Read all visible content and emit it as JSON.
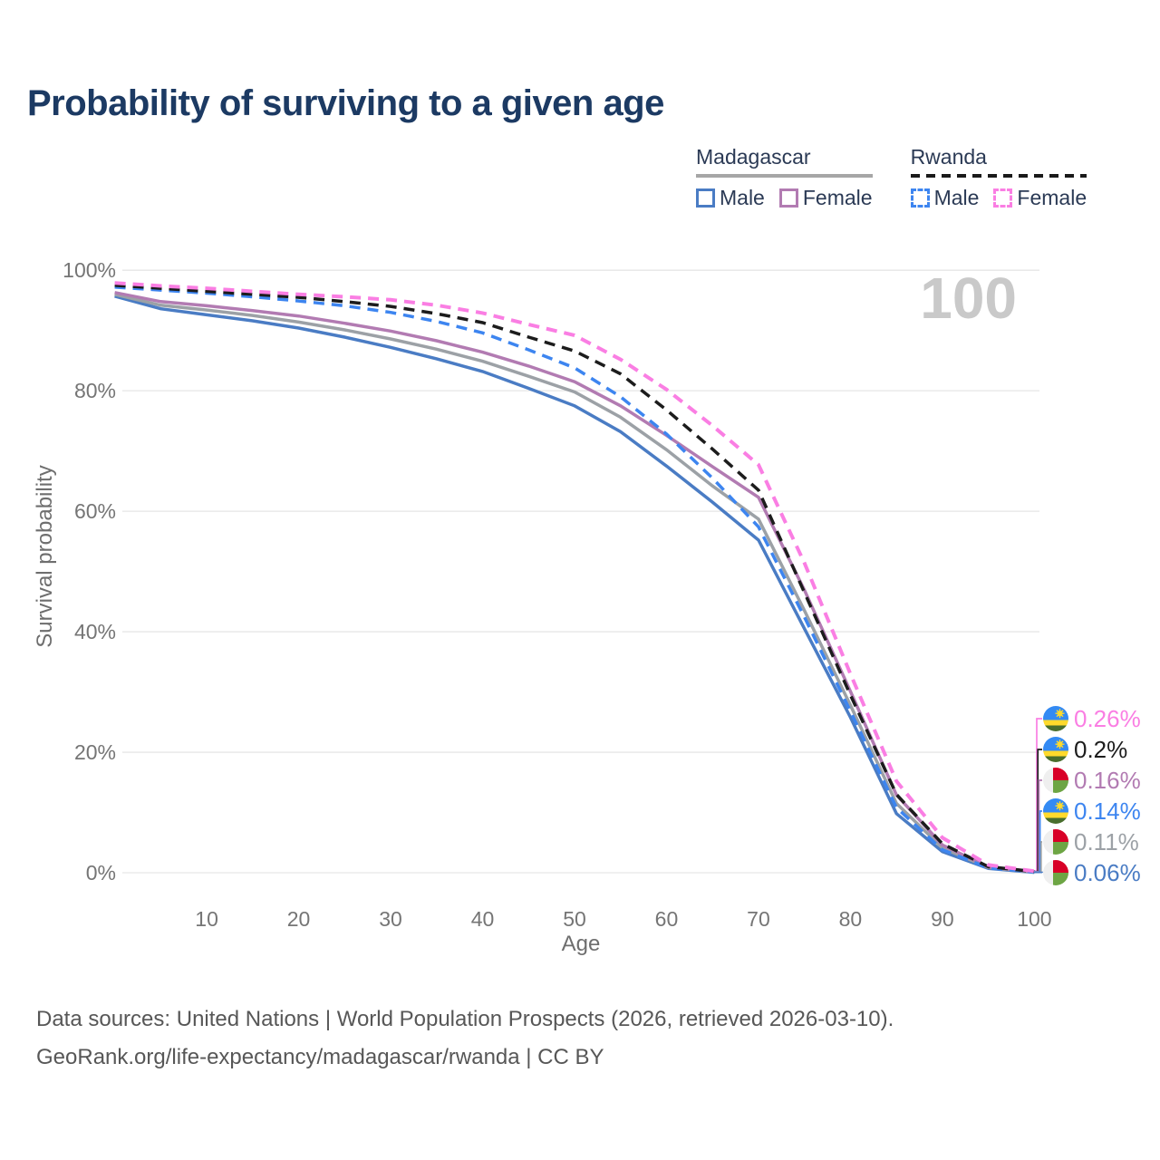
{
  "title": "Probability of surviving to a given age",
  "legend": {
    "groups": [
      {
        "label": "Madagascar",
        "underline_style": "solid",
        "underline_color": "#a6a6a6",
        "items": [
          {
            "label": "Male",
            "color": "#4a7cc4",
            "dashed": false
          },
          {
            "label": "Female",
            "color": "#b27bb2",
            "dashed": false
          }
        ]
      },
      {
        "label": "Rwanda",
        "underline_style": "dashed",
        "underline_color": "#1a1a1a",
        "items": [
          {
            "label": "Male",
            "color": "#3d85f0",
            "dashed": true
          },
          {
            "label": "Female",
            "color": "#fa7ee3",
            "dashed": true
          }
        ]
      }
    ]
  },
  "watermark": "100",
  "chart_data": {
    "type": "line",
    "title": "Probability of surviving to a given age",
    "xlabel": "Age",
    "ylabel": "Survival probability",
    "x_range": [
      0,
      100
    ],
    "y_range": [
      0,
      100
    ],
    "grid": "horizontal",
    "legend_position": "top-right",
    "x": [
      0,
      5,
      10,
      15,
      20,
      25,
      30,
      35,
      40,
      45,
      50,
      55,
      60,
      65,
      70,
      75,
      80,
      85,
      90,
      95,
      100
    ],
    "x_ticks": [
      10,
      20,
      30,
      40,
      50,
      60,
      70,
      80,
      90,
      100
    ],
    "y_ticks": [
      {
        "value": 100,
        "label": "100%"
      },
      {
        "value": 80,
        "label": "80%"
      },
      {
        "value": 60,
        "label": "60%"
      },
      {
        "value": 40,
        "label": "40%"
      },
      {
        "value": 20,
        "label": "20%"
      },
      {
        "value": 0,
        "label": "0%"
      }
    ],
    "series": [
      {
        "name": "Madagascar Male",
        "country": "Madagascar",
        "sex": "male",
        "color": "#4a7cc4",
        "dashed": false,
        "values": [
          95.7,
          93.6,
          92.6,
          91.6,
          90.4,
          88.9,
          87.2,
          85.3,
          83.2,
          80.4,
          77.5,
          73.2,
          67.5,
          61.5,
          55.2,
          40.5,
          25.8,
          9.8,
          3.5,
          0.7,
          0.06
        ]
      },
      {
        "name": "Madagascar All",
        "country": "Madagascar",
        "sex": "all",
        "color": "#9ca1a6",
        "dashed": false,
        "values": [
          96.0,
          94.2,
          93.4,
          92.5,
          91.4,
          90.1,
          88.6,
          86.9,
          84.9,
          82.4,
          79.8,
          75.6,
          70.2,
          64.2,
          58.7,
          43.5,
          27.8,
          11.5,
          4.1,
          0.85,
          0.11
        ]
      },
      {
        "name": "Madagascar Female",
        "country": "Madagascar",
        "sex": "female",
        "color": "#b27bb2",
        "dashed": false,
        "values": [
          96.3,
          94.8,
          94.1,
          93.3,
          92.4,
          91.2,
          89.9,
          88.3,
          86.4,
          84.1,
          81.5,
          77.5,
          72.6,
          67.4,
          62.3,
          46.9,
          30.1,
          12.9,
          4.6,
          0.95,
          0.16
        ]
      },
      {
        "name": "Rwanda Male",
        "country": "Rwanda",
        "sex": "male",
        "color": "#3d85f0",
        "dashed": true,
        "values": [
          97.2,
          96.7,
          96.2,
          95.6,
          94.9,
          94.1,
          93.0,
          91.5,
          89.6,
          86.8,
          83.8,
          79.0,
          72.8,
          65.5,
          57.4,
          42.4,
          26.8,
          10.8,
          3.8,
          0.8,
          0.14
        ]
      },
      {
        "name": "Rwanda All",
        "country": "Rwanda",
        "sex": "all",
        "color": "#1c1c1c",
        "dashed": true,
        "values": [
          97.5,
          97.0,
          96.5,
          96.0,
          95.5,
          94.8,
          94.0,
          92.8,
          91.3,
          88.9,
          86.6,
          82.8,
          76.8,
          70.3,
          63.5,
          46.5,
          29.5,
          13.0,
          4.8,
          1.0,
          0.2
        ]
      },
      {
        "name": "Rwanda Female",
        "country": "Rwanda",
        "sex": "female",
        "color": "#fa7ee3",
        "dashed": true,
        "values": [
          97.9,
          97.4,
          97.0,
          96.5,
          96.0,
          95.6,
          95.1,
          94.2,
          92.9,
          91.0,
          89.2,
          85.2,
          80.2,
          74.2,
          67.7,
          51.4,
          33.0,
          15.2,
          5.8,
          1.3,
          0.26
        ]
      }
    ],
    "end_labels": [
      {
        "series": "Rwanda Female",
        "label": "0.26%",
        "color": "#fa7ee3",
        "flag": "rwanda"
      },
      {
        "series": "Rwanda All",
        "label": "0.2%",
        "color": "#1c1c1c",
        "flag": "rwanda"
      },
      {
        "series": "Madagascar Female",
        "label": "0.16%",
        "color": "#b27bb2",
        "flag": "madagascar"
      },
      {
        "series": "Rwanda Male",
        "label": "0.14%",
        "color": "#3d85f0",
        "flag": "rwanda"
      },
      {
        "series": "Madagascar All",
        "label": "0.11%",
        "color": "#9ca1a6",
        "flag": "madagascar"
      },
      {
        "series": "Madagascar Male",
        "label": "0.06%",
        "color": "#4a7cc4",
        "flag": "madagascar"
      }
    ],
    "age_marker": "100"
  },
  "footer": {
    "line1": "Data sources: United Nations | World Population Prospects (2026, retrieved 2026-03-10).",
    "line2": "GeoRank.org/life-expectancy/madagascar/rwanda | CC BY"
  }
}
